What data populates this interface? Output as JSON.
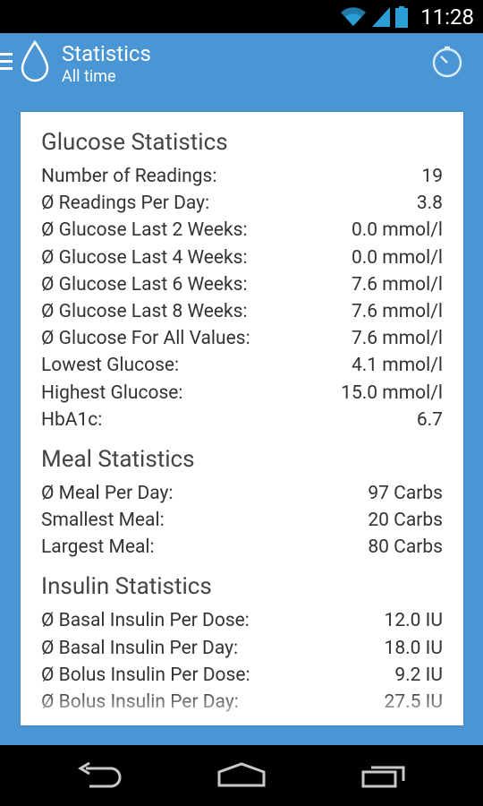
{
  "status_bar": {
    "time": "11:28"
  },
  "action_bar": {
    "title": "Statistics",
    "subtitle": "All time"
  },
  "sections": [
    {
      "title": "Glucose Statistics",
      "rows": [
        {
          "label": "Number of Readings:",
          "value": "19"
        },
        {
          "label": "Ø Readings Per Day:",
          "value": "3.8"
        },
        {
          "label": "Ø Glucose Last 2 Weeks:",
          "value": "0.0 mmol/l"
        },
        {
          "label": "Ø Glucose Last 4 Weeks:",
          "value": "0.0 mmol/l"
        },
        {
          "label": "Ø Glucose Last 6 Weeks:",
          "value": "7.6 mmol/l"
        },
        {
          "label": "Ø Glucose Last 8 Weeks:",
          "value": "7.6 mmol/l"
        },
        {
          "label": "Ø Glucose For All Values:",
          "value": "7.6 mmol/l"
        },
        {
          "label": "Lowest Glucose:",
          "value": "4.1 mmol/l"
        },
        {
          "label": "Highest Glucose:",
          "value": "15.0 mmol/l"
        },
        {
          "label": "HbA1c:",
          "value": "6.7"
        }
      ]
    },
    {
      "title": "Meal Statistics",
      "rows": [
        {
          "label": "Ø Meal Per Day:",
          "value": "97 Carbs"
        },
        {
          "label": "Smallest Meal:",
          "value": "20 Carbs"
        },
        {
          "label": "Largest Meal:",
          "value": "80 Carbs"
        }
      ]
    },
    {
      "title": "Insulin Statistics",
      "rows": [
        {
          "label": "Ø Basal Insulin Per Dose:",
          "value": "12.0 IU"
        },
        {
          "label": "Ø Basal Insulin Per Day:",
          "value": "18.0 IU"
        },
        {
          "label": "Ø Bolus Insulin Per Dose:",
          "value": "9.2 IU"
        },
        {
          "label": "Ø Bolus Insulin Per Day:",
          "value": "27.5 IU"
        }
      ]
    }
  ],
  "icons": {
    "drawer": "hamburger-icon",
    "app": "water-drop-icon",
    "action": "timer-icon",
    "wifi": "wifi-icon",
    "signal": "signal-icon",
    "battery": "battery-icon",
    "back": "back-icon",
    "home": "home-icon",
    "recents": "recents-icon"
  },
  "colors": {
    "accent": "#4a96d4",
    "card": "#ffffff",
    "text": "#333333"
  }
}
